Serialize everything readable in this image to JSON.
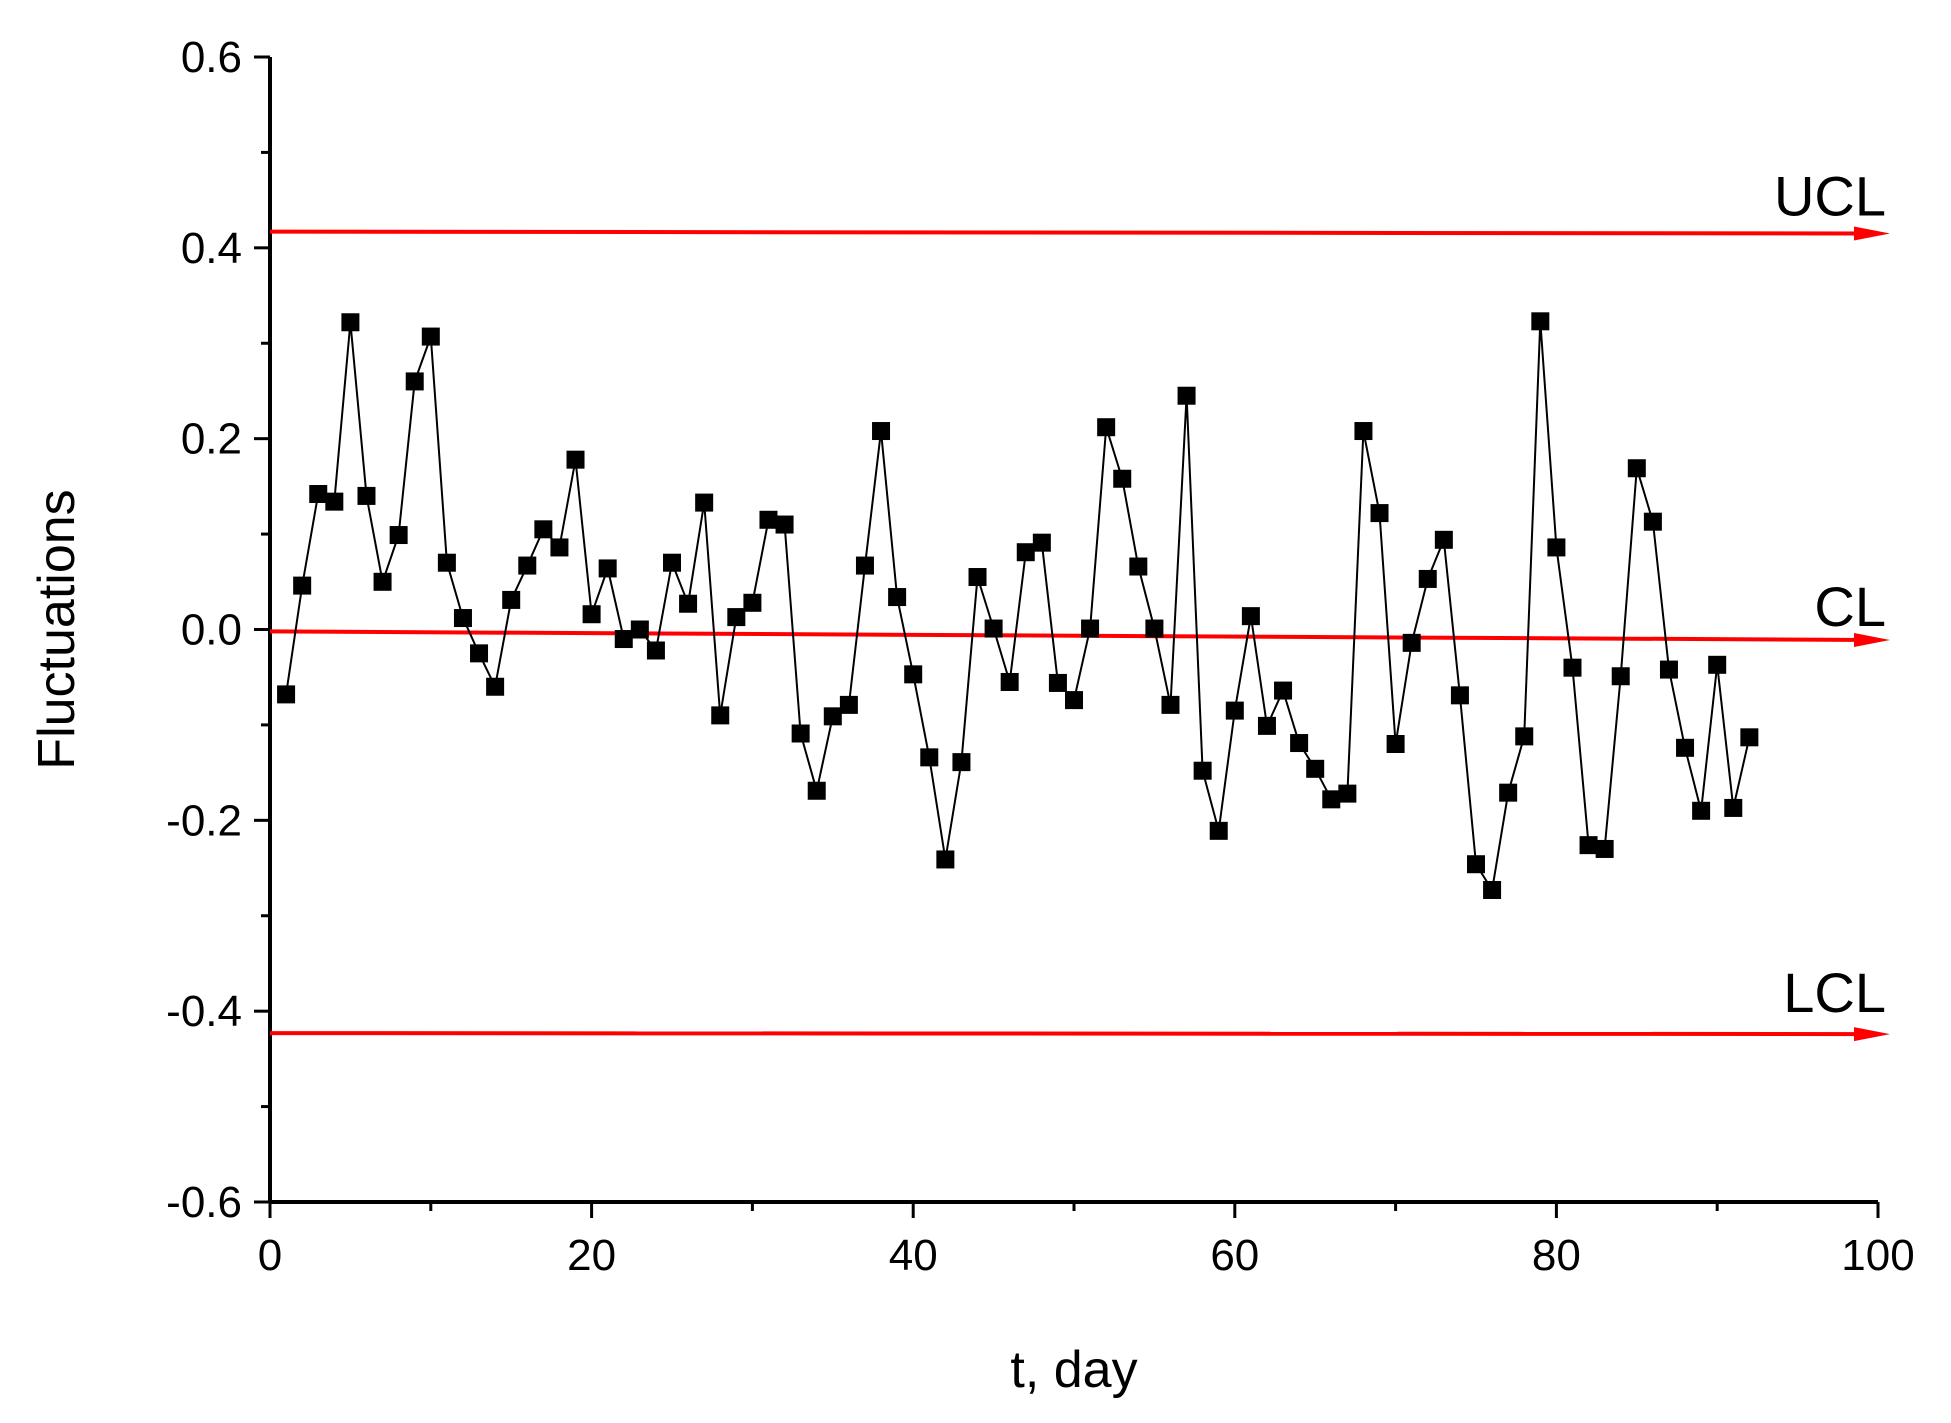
{
  "chart_data": {
    "type": "line",
    "xlabel": "t, day",
    "ylabel": "Fluctuations",
    "xlim": [
      0,
      100
    ],
    "ylim": [
      -0.6,
      0.6
    ],
    "x_ticks": [
      0,
      20,
      40,
      60,
      80,
      100
    ],
    "x_tick_labels": [
      "0",
      "20",
      "40",
      "60",
      "80",
      "100"
    ],
    "y_ticks": [
      -0.6,
      -0.4,
      -0.2,
      0.0,
      0.2,
      0.4,
      0.6
    ],
    "y_tick_labels": [
      "-0.6",
      "-0.4",
      "-0.2",
      "0.0",
      "0.2",
      "0.4",
      "0.6"
    ],
    "grid": false,
    "series": [
      {
        "marker": "square",
        "color": "#000000",
        "x": [
          1,
          2,
          3,
          4,
          5,
          6,
          7,
          8,
          9,
          10,
          11,
          12,
          13,
          14,
          15,
          16,
          17,
          18,
          19,
          20,
          21,
          22,
          23,
          24,
          25,
          26,
          27,
          28,
          29,
          30,
          31,
          32,
          33,
          34,
          35,
          36,
          37,
          38,
          39,
          40,
          41,
          42,
          43,
          44,
          45,
          46,
          47,
          48,
          49,
          50,
          51,
          52,
          53,
          54,
          55,
          56,
          57,
          58,
          59,
          60,
          61,
          62,
          63,
          64,
          65,
          66,
          67,
          68,
          69,
          70,
          71,
          72,
          73,
          74,
          75,
          76,
          77,
          78,
          79,
          80,
          81,
          82,
          83,
          84,
          85,
          86,
          87,
          88,
          89,
          90,
          91,
          92
        ],
        "y": [
          -0.068,
          0.046,
          0.142,
          0.134,
          0.322,
          0.14,
          0.05,
          0.099,
          0.26,
          0.307,
          0.07,
          0.012,
          -0.025,
          -0.06,
          0.031,
          0.067,
          0.105,
          0.086,
          0.178,
          0.016,
          0.064,
          -0.01,
          0.0,
          -0.022,
          0.07,
          0.027,
          0.133,
          -0.09,
          0.013,
          0.028,
          0.115,
          0.11,
          -0.109,
          -0.169,
          -0.091,
          -0.079,
          0.067,
          0.208,
          0.034,
          -0.047,
          -0.134,
          -0.241,
          -0.139,
          0.055,
          0.001,
          -0.055,
          0.081,
          0.091,
          -0.056,
          -0.074,
          0.001,
          0.212,
          0.158,
          0.066,
          0.001,
          -0.079,
          0.245,
          -0.148,
          -0.211,
          -0.085,
          0.014,
          -0.101,
          -0.064,
          -0.119,
          -0.146,
          -0.178,
          -0.172,
          0.208,
          0.122,
          -0.12,
          -0.014,
          0.053,
          0.094,
          -0.069,
          -0.246,
          -0.273,
          -0.171,
          -0.112,
          0.323,
          0.086,
          -0.04,
          -0.226,
          -0.23,
          -0.049,
          0.169,
          0.113,
          -0.042,
          -0.124,
          -0.19,
          -0.037,
          -0.187,
          -0.113
        ]
      }
    ],
    "control_lines": [
      {
        "label": "UCL",
        "y_start": 0.417,
        "y_end": 0.415,
        "color": "#ff0000"
      },
      {
        "label": "CL",
        "y_start": -0.002,
        "y_end": -0.011,
        "color": "#ff0000"
      },
      {
        "label": "LCL",
        "y_start": -0.423,
        "y_end": -0.424,
        "color": "#ff0000"
      }
    ]
  }
}
